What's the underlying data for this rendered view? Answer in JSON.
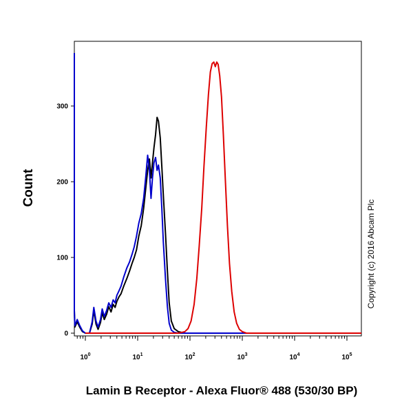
{
  "chart_data": {
    "type": "line",
    "xlabel": "Lamin B Receptor - Alexa Fluor® 488 (530/30 BP)",
    "ylabel": "Count",
    "xscale": "log",
    "xlim": [
      0.5,
      300000
    ],
    "ylim": [
      0,
      380
    ],
    "x_ticks": [
      {
        "value": 1,
        "base": "10",
        "exp": "0"
      },
      {
        "value": 10,
        "base": "10",
        "exp": "1"
      },
      {
        "value": 100,
        "base": "10",
        "exp": "2"
      },
      {
        "value": 1000,
        "base": "10",
        "exp": "3"
      },
      {
        "value": 10000,
        "base": "10",
        "exp": "4"
      },
      {
        "value": 100000,
        "base": "10",
        "exp": "5"
      }
    ],
    "y_ticks": [
      0,
      100,
      200,
      300
    ],
    "grid": false,
    "annotation": "Copyright (c) 2016 Abcam Plc",
    "series": [
      {
        "color": "#000000",
        "points": [
          [
            0.55,
            370
          ],
          [
            0.58,
            200
          ],
          [
            0.6,
            30
          ],
          [
            0.63,
            8
          ],
          [
            0.7,
            15
          ],
          [
            0.78,
            8
          ],
          [
            0.88,
            2
          ],
          [
            1.0,
            0
          ],
          [
            1.2,
            0
          ],
          [
            1.35,
            12
          ],
          [
            1.45,
            30
          ],
          [
            1.6,
            12
          ],
          [
            1.75,
            5
          ],
          [
            1.95,
            14
          ],
          [
            2.1,
            27
          ],
          [
            2.3,
            18
          ],
          [
            2.55,
            25
          ],
          [
            2.8,
            35
          ],
          [
            3.1,
            28
          ],
          [
            3.4,
            38
          ],
          [
            3.7,
            34
          ],
          [
            4.0,
            42
          ],
          [
            4.4,
            48
          ],
          [
            4.8,
            52
          ],
          [
            5.4,
            62
          ],
          [
            6.2,
            72
          ],
          [
            7.0,
            82
          ],
          [
            7.8,
            92
          ],
          [
            8.6,
            100
          ],
          [
            9.5,
            110
          ],
          [
            10.5,
            128
          ],
          [
            11.7,
            142
          ],
          [
            13.0,
            165
          ],
          [
            14.2,
            190
          ],
          [
            15.5,
            215
          ],
          [
            16.8,
            230
          ],
          [
            18.0,
            205
          ],
          [
            19.2,
            225
          ],
          [
            20.5,
            245
          ],
          [
            22.0,
            262
          ],
          [
            23.5,
            285
          ],
          [
            25.0,
            280
          ],
          [
            27.0,
            258
          ],
          [
            29.0,
            220
          ],
          [
            31.0,
            182
          ],
          [
            34.0,
            132
          ],
          [
            37.0,
            82
          ],
          [
            40.0,
            40
          ],
          [
            44.0,
            16
          ],
          [
            50.0,
            6
          ],
          [
            60.0,
            2
          ],
          [
            80.0,
            0
          ],
          [
            200000,
            0
          ]
        ]
      },
      {
        "color": "#0000cc",
        "points": [
          [
            0.55,
            370
          ],
          [
            0.58,
            200
          ],
          [
            0.6,
            30
          ],
          [
            0.63,
            10
          ],
          [
            0.7,
            18
          ],
          [
            0.78,
            10
          ],
          [
            0.88,
            3
          ],
          [
            1.0,
            0
          ],
          [
            1.2,
            0
          ],
          [
            1.35,
            15
          ],
          [
            1.45,
            34
          ],
          [
            1.6,
            16
          ],
          [
            1.75,
            8
          ],
          [
            1.95,
            18
          ],
          [
            2.1,
            32
          ],
          [
            2.3,
            22
          ],
          [
            2.55,
            30
          ],
          [
            2.8,
            40
          ],
          [
            3.1,
            34
          ],
          [
            3.4,
            44
          ],
          [
            3.7,
            40
          ],
          [
            4.0,
            50
          ],
          [
            4.4,
            56
          ],
          [
            4.8,
            62
          ],
          [
            5.4,
            74
          ],
          [
            6.2,
            86
          ],
          [
            7.0,
            94
          ],
          [
            7.8,
            104
          ],
          [
            8.6,
            114
          ],
          [
            9.5,
            128
          ],
          [
            10.5,
            145
          ],
          [
            11.7,
            158
          ],
          [
            13.0,
            178
          ],
          [
            14.2,
            205
          ],
          [
            15.5,
            235
          ],
          [
            16.8,
            215
          ],
          [
            18.0,
            178
          ],
          [
            19.2,
            205
          ],
          [
            20.5,
            225
          ],
          [
            22.0,
            232
          ],
          [
            23.5,
            215
          ],
          [
            25.0,
            222
          ],
          [
            27.0,
            205
          ],
          [
            29.0,
            165
          ],
          [
            31.0,
            120
          ],
          [
            34.0,
            72
          ],
          [
            37.0,
            35
          ],
          [
            40.0,
            13
          ],
          [
            44.0,
            4
          ],
          [
            50.0,
            1
          ],
          [
            60.0,
            0
          ],
          [
            200000,
            0
          ]
        ]
      },
      {
        "color": "#dd0000",
        "points": [
          [
            1.0,
            0
          ],
          [
            60,
            0
          ],
          [
            70,
            1
          ],
          [
            80,
            2
          ],
          [
            92,
            6
          ],
          [
            105,
            16
          ],
          [
            120,
            38
          ],
          [
            135,
            72
          ],
          [
            150,
            115
          ],
          [
            168,
            165
          ],
          [
            185,
            220
          ],
          [
            205,
            272
          ],
          [
            225,
            315
          ],
          [
            245,
            345
          ],
          [
            265,
            356
          ],
          [
            285,
            358
          ],
          [
            305,
            352
          ],
          [
            325,
            358
          ],
          [
            345,
            355
          ],
          [
            370,
            340
          ],
          [
            400,
            312
          ],
          [
            435,
            262
          ],
          [
            475,
            202
          ],
          [
            520,
            142
          ],
          [
            570,
            92
          ],
          [
            630,
            55
          ],
          [
            700,
            28
          ],
          [
            780,
            13
          ],
          [
            880,
            5
          ],
          [
            1000,
            2
          ],
          [
            1200,
            0
          ],
          [
            200000,
            0
          ]
        ]
      }
    ]
  }
}
